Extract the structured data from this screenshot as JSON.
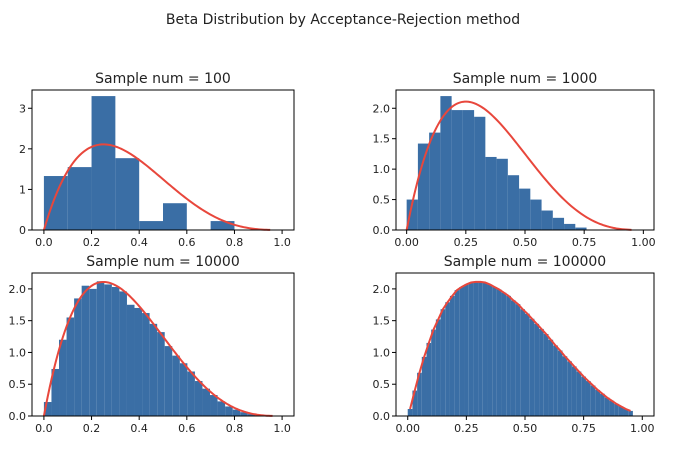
{
  "figure": {
    "title": "Beta Distribution by Acceptance-Rejection method",
    "bar_color": "#3a6ea5",
    "curve_color": "#e8473c"
  },
  "chart_data": [
    {
      "type": "bar",
      "title": "Sample num = 100",
      "xlim": [
        -0.05,
        1.05
      ],
      "ylim": [
        0,
        3.45
      ],
      "xticks": [
        0.0,
        0.2,
        0.4,
        0.6,
        0.8,
        1.0
      ],
      "xtick_labels": [
        "0.0",
        "0.2",
        "0.4",
        "0.6",
        "0.8",
        "1.0"
      ],
      "yticks": [
        0,
        1,
        2,
        3
      ],
      "ytick_labels": [
        "0",
        "1",
        "2",
        "3"
      ],
      "bin_start": 0.0,
      "bin_width": 0.1,
      "values": [
        1.33,
        1.55,
        3.3,
        1.77,
        0.22,
        0.66,
        0.0,
        0.22
      ],
      "curve": {
        "a": 2,
        "b": 4,
        "x_max": 0.95
      }
    },
    {
      "type": "bar",
      "title": "Sample num = 1000",
      "xlim": [
        -0.045,
        1.045
      ],
      "ylim": [
        0,
        2.3
      ],
      "xticks": [
        0.0,
        0.25,
        0.5,
        0.75,
        1.0
      ],
      "xtick_labels": [
        "0.00",
        "0.25",
        "0.50",
        "0.75",
        "1.00"
      ],
      "yticks": [
        0.0,
        0.5,
        1.0,
        1.5,
        2.0
      ],
      "ytick_labels": [
        "0.0",
        "0.5",
        "1.0",
        "1.5",
        "2.0"
      ],
      "bin_start": 0.0,
      "bin_width": 0.0475,
      "values": [
        0.5,
        1.42,
        1.6,
        2.2,
        1.97,
        1.97,
        1.86,
        1.2,
        1.17,
        0.9,
        0.68,
        0.5,
        0.32,
        0.2,
        0.1,
        0.04
      ],
      "curve": {
        "a": 2,
        "b": 4,
        "x_max": 0.95
      }
    },
    {
      "type": "bar",
      "title": "Sample num = 10000",
      "xlim": [
        -0.05,
        1.05
      ],
      "ylim": [
        0,
        2.25
      ],
      "xticks": [
        0.0,
        0.2,
        0.4,
        0.6,
        0.8,
        1.0
      ],
      "xtick_labels": [
        "0.0",
        "0.2",
        "0.4",
        "0.6",
        "0.8",
        "1.0"
      ],
      "yticks": [
        0.0,
        0.5,
        1.0,
        1.5,
        2.0
      ],
      "ytick_labels": [
        "0.0",
        "0.5",
        "1.0",
        "1.5",
        "2.0"
      ],
      "bin_start": 0.0,
      "bin_width": 0.0317,
      "values": [
        0.22,
        0.74,
        1.2,
        1.55,
        1.85,
        2.05,
        2.0,
        2.12,
        2.07,
        2.03,
        1.96,
        1.75,
        1.7,
        1.62,
        1.45,
        1.32,
        1.1,
        0.95,
        0.83,
        0.7,
        0.55,
        0.43,
        0.33,
        0.23,
        0.15,
        0.1,
        0.06,
        0.03,
        0.01
      ],
      "curve": {
        "a": 2,
        "b": 4,
        "x_max": 0.96
      }
    },
    {
      "type": "bar",
      "title": "Sample num = 100000",
      "xlim": [
        -0.05,
        1.05
      ],
      "ylim": [
        0,
        2.25
      ],
      "xticks": [
        0.0,
        0.25,
        0.5,
        0.75,
        1.0
      ],
      "xtick_labels": [
        "0.00",
        "0.25",
        "0.50",
        "0.75",
        "1.00"
      ],
      "yticks": [
        0.0,
        0.5,
        1.0,
        1.5,
        2.0
      ],
      "ytick_labels": [
        "0.0",
        "0.5",
        "1.0",
        "1.5",
        "2.0"
      ],
      "bin_start": 0.0,
      "bin_width": 0.02,
      "values": [
        0.11,
        0.4,
        0.68,
        0.93,
        1.15,
        1.36,
        1.52,
        1.68,
        1.79,
        1.89,
        1.98,
        2.03,
        2.07,
        2.1,
        2.11,
        2.11,
        2.1,
        2.07,
        2.03,
        1.99,
        1.94,
        1.89,
        1.82,
        1.76,
        1.68,
        1.61,
        1.53,
        1.45,
        1.37,
        1.29,
        1.2,
        1.11,
        1.03,
        0.94,
        0.86,
        0.78,
        0.7,
        0.62,
        0.55,
        0.48,
        0.41,
        0.35,
        0.29,
        0.24,
        0.19,
        0.15,
        0.11,
        0.08
      ]
    }
  ]
}
